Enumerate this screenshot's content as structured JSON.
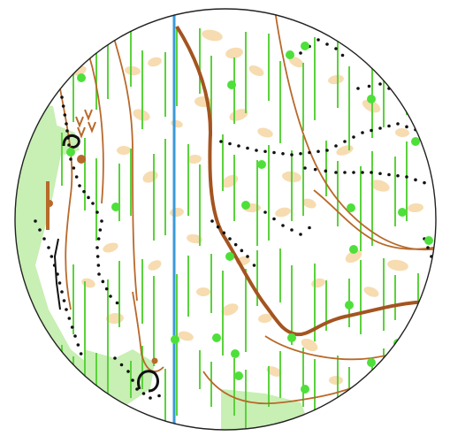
{
  "map": {
    "colors": {
      "background": "#ffffff",
      "open_land": "#c8efb4",
      "rough_open": "#f6dcb0",
      "vegetation_lines": "#5bd23c",
      "contour": "#b8692a",
      "index_contour": "#a45420",
      "water": "#3a9ad8",
      "black_features": "#111111",
      "green_points": "#4ee03a",
      "boulder_brown": "#b8692a",
      "frame": "#222222"
    }
  }
}
